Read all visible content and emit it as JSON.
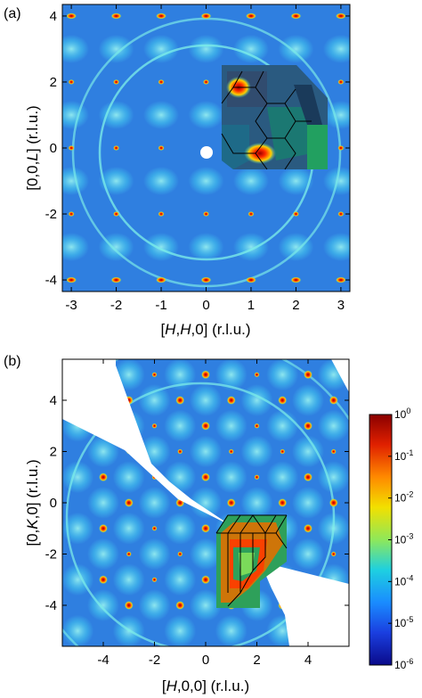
{
  "panels": [
    {
      "id": "a",
      "label": "(a)",
      "xlabel": {
        "prefix": "[",
        "ital1": "H",
        "mid": ",",
        "ital2": "H",
        "suffix": ",0] (r.l.u.)"
      },
      "ylabel": {
        "prefix": "[0,0,",
        "ital": "L",
        "suffix": "] (r.l.u.)"
      },
      "x_ticks": [
        "-3",
        "-2",
        "-1",
        "0",
        "1",
        "2",
        "3"
      ],
      "y_ticks": [
        "4",
        "2",
        "0",
        "-2",
        "-4"
      ],
      "x_range": [
        -3.2,
        3.2
      ],
      "y_range": [
        -4.35,
        4.35
      ],
      "image": "neutron diffraction intensity map with simulated inset"
    },
    {
      "id": "b",
      "label": "(b)",
      "xlabel": {
        "prefix": "[",
        "ital": "H",
        "suffix": ",0,0] (r.l.u.)"
      },
      "ylabel": {
        "prefix": "[0,",
        "ital": "K",
        "suffix": ",0] (r.l.u.)"
      },
      "x_ticks": [
        "-4",
        "-2",
        "0",
        "2",
        "4"
      ],
      "y_ticks": [
        "4",
        "2",
        "0",
        "-2",
        "-4"
      ],
      "x_range": [
        -5.6,
        5.6
      ],
      "y_range": [
        -5.6,
        5.6
      ],
      "image": "neutron diffraction intensity map with simulated inset"
    }
  ],
  "colorbar": {
    "scale": "log",
    "ticks": [
      {
        "base": "10",
        "exp": "0"
      },
      {
        "base": "10",
        "exp": "-1"
      },
      {
        "base": "10",
        "exp": "-2"
      },
      {
        "base": "10",
        "exp": "-3"
      },
      {
        "base": "10",
        "exp": "-4"
      },
      {
        "base": "10",
        "exp": "-5"
      },
      {
        "base": "10",
        "exp": "-6"
      }
    ],
    "colors": [
      "#8a0000",
      "#e02000",
      "#ff8a00",
      "#f2e000",
      "#8ee85a",
      "#1ed0e0",
      "#1a8cff",
      "#1a3fe0",
      "#0a0a8a"
    ]
  }
}
